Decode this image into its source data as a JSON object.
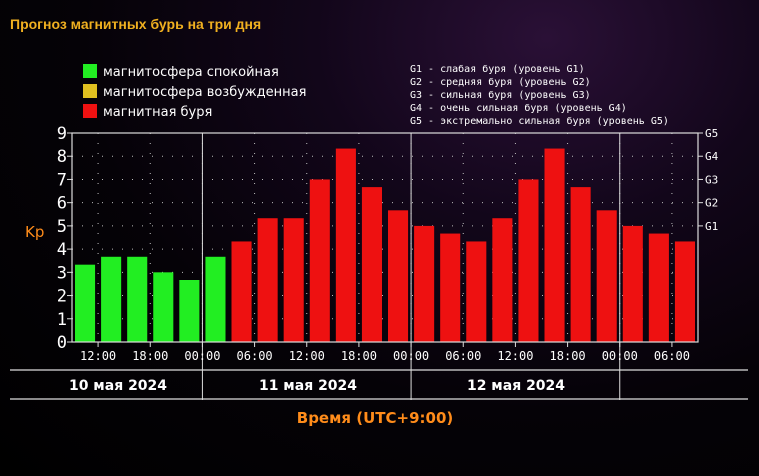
{
  "header": {
    "title": "Прогноз магнитных бурь на три дня"
  },
  "legend": {
    "items": [
      {
        "label": "магнитосфера спокойная",
        "color": "#22ee22"
      },
      {
        "label": "магнитосфера возбужденная",
        "color": "#e0c020"
      },
      {
        "label": "магнитная буря",
        "color": "#ee1111"
      }
    ],
    "g_levels": [
      "G1 - слабая буря (уровень G1)",
      "G2 - средняя буря (уровень G2)",
      "G3 - сильная буря (уровень G3)",
      "G4 - очень сильная буря (уровень G4)",
      "G5 - экстремально сильная буря (уровень G5)"
    ]
  },
  "colors": {
    "title": "#f0b020",
    "axis_label": "#ff8c1a",
    "text": "#ffffff",
    "calm": "#22ee22",
    "excited": "#e0c020",
    "storm": "#ee1111"
  },
  "chart_data": {
    "type": "bar",
    "title": "Прогноз магнитных бурь на три дня",
    "ylabel": "Kp",
    "xlabel": "Время (UTC+9:00)",
    "ylim": [
      0,
      9
    ],
    "yticks": [
      "0",
      "1",
      "2",
      "3",
      "4",
      "5",
      "6",
      "7",
      "8",
      "9"
    ],
    "right_ticks": [
      {
        "label": "G1",
        "value": 5
      },
      {
        "label": "G2",
        "value": 6
      },
      {
        "label": "G3",
        "value": 7
      },
      {
        "label": "G4",
        "value": 8
      },
      {
        "label": "G5",
        "value": 9
      }
    ],
    "time_labels": [
      "12:00",
      "18:00",
      "00:00",
      "06:00",
      "12:00",
      "18:00",
      "00:00",
      "06:00",
      "12:00",
      "18:00",
      "00:00",
      "06:00"
    ],
    "day_labels": [
      "10 мая 2024",
      "11 мая 2024",
      "12 мая 2024"
    ],
    "grid": true,
    "values": [
      3.33,
      3.67,
      3.67,
      3.0,
      2.67,
      3.67,
      4.33,
      5.33,
      5.33,
      7.0,
      8.33,
      6.67,
      5.67,
      5.0,
      4.67,
      4.33,
      5.33,
      7.0,
      8.33,
      6.67,
      5.67,
      5.0,
      4.67,
      4.33
    ],
    "status": [
      "calm",
      "calm",
      "calm",
      "calm",
      "calm",
      "calm",
      "storm",
      "storm",
      "storm",
      "storm",
      "storm",
      "storm",
      "storm",
      "storm",
      "storm",
      "storm",
      "storm",
      "storm",
      "storm",
      "storm",
      "storm",
      "storm",
      "storm",
      "storm"
    ]
  }
}
